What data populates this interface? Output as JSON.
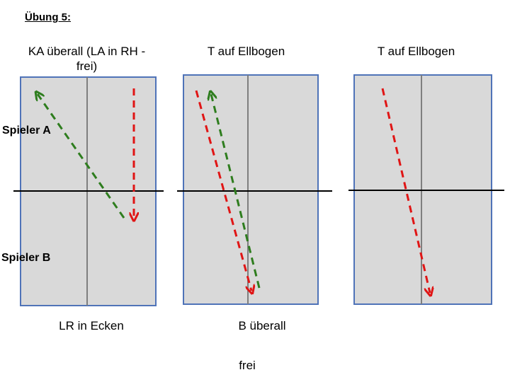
{
  "title": "Übung 5:",
  "columns": [
    {
      "label_line1": "KA überall (LA in RH -",
      "label_line2": "frei)"
    },
    {
      "label_line1": "T auf Ellbogen",
      "label_line2": ""
    },
    {
      "label_line1": "T auf Ellbogen",
      "label_line2": ""
    }
  ],
  "players": {
    "a": "Spieler A",
    "b": "Spieler B"
  },
  "bottom": {
    "left": "LR in Ecken",
    "middle": "B überall",
    "free": "frei"
  },
  "colors": {
    "table_fill": "#d9d9d9",
    "table_border": "#4f73b8",
    "net": "#000000",
    "center_line": "#7f7f7f",
    "green_arrow": "#2e7d1e",
    "red_arrow": "#e01515"
  }
}
